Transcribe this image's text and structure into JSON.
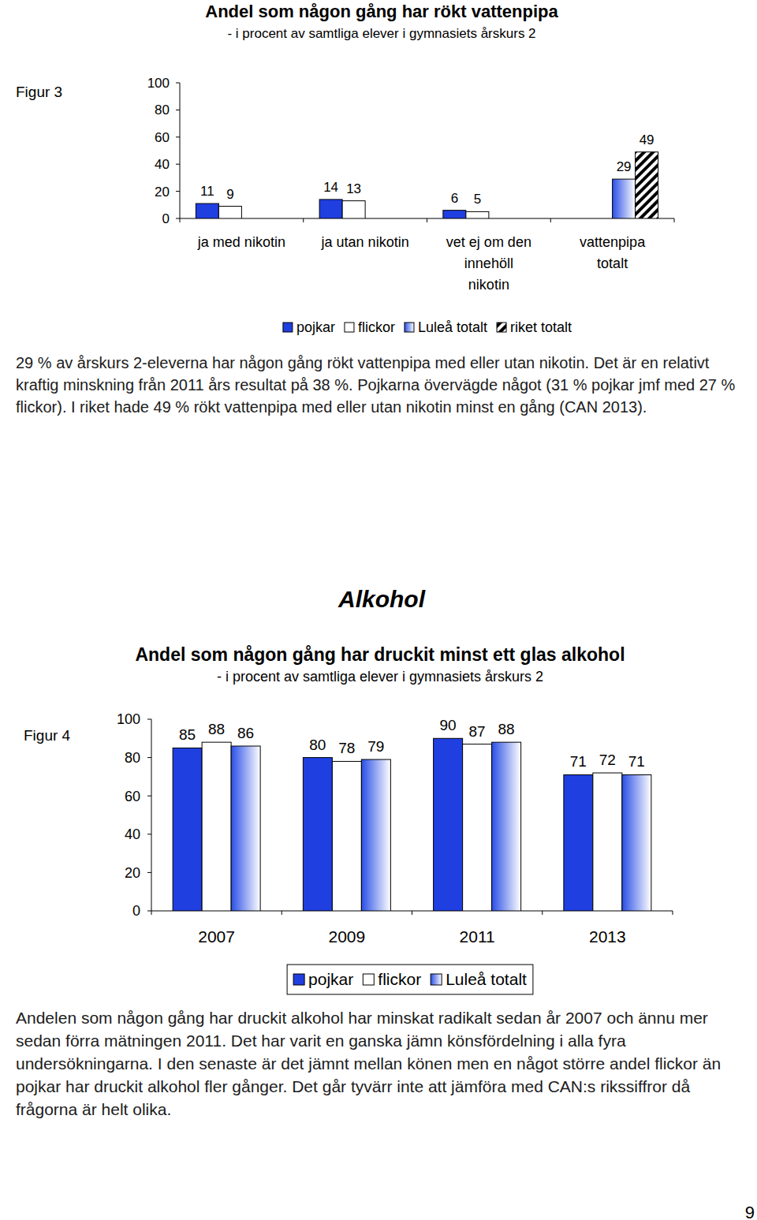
{
  "chart_data": [
    {
      "type": "bar",
      "figure_label": "Figur 3",
      "title": "Andel som någon gång har rökt vattenpipa",
      "subtitle": "- i procent av samtliga elever i gymnasiets årskurs 2",
      "categories": [
        "ja med nikotin",
        "ja utan nikotin",
        "vet ej om den\ninnehöll\nnikotin",
        "vattenpipa\ntotalt"
      ],
      "series": [
        {
          "name": "pojkar",
          "color": "#1f3fe0",
          "values": [
            11,
            14,
            6,
            null
          ]
        },
        {
          "name": "flickor",
          "color": "#ffffff",
          "values": [
            9,
            13,
            5,
            null
          ]
        },
        {
          "name": "Luleå totalt",
          "color": "#2a4fe6",
          "values": [
            null,
            null,
            null,
            29
          ]
        },
        {
          "name": "riket totalt",
          "color": "#000000",
          "values": [
            null,
            null,
            null,
            49
          ]
        }
      ],
      "ylim": [
        0,
        100
      ],
      "yticks": [
        0,
        20,
        40,
        60,
        80,
        100
      ],
      "data_labels": true,
      "legend": "bottom",
      "grid": false
    },
    {
      "type": "bar",
      "figure_label": "Figur 4",
      "title": "Andel som någon gång har druckit minst ett glas alkohol",
      "subtitle": "- i procent av samtliga elever i gymnasiets årskurs 2",
      "categories": [
        "2007",
        "2009",
        "2011",
        "2013"
      ],
      "series": [
        {
          "name": "pojkar",
          "color": "#1f3fe0",
          "values": [
            85,
            80,
            90,
            71
          ]
        },
        {
          "name": "flickor",
          "color": "#ffffff",
          "values": [
            88,
            78,
            87,
            72
          ]
        },
        {
          "name": "Luleå totalt",
          "color": "#2a4fe6",
          "values": [
            86,
            79,
            88,
            71
          ]
        }
      ],
      "ylim": [
        0,
        100
      ],
      "yticks": [
        0,
        20,
        40,
        60,
        80,
        100
      ],
      "data_labels": true,
      "legend": "bottom",
      "grid": false
    }
  ],
  "section_heading": "Alkohol",
  "paragraphs": [
    "29 % av årskurs 2-eleverna har någon gång rökt vattenpipa med eller utan nikotin. Det är en relativt kraftig minskning från 2011 års resultat på 38 %. Pojkarna övervägde något (31 % pojkar jmf med 27 % flickor). I riket hade 49 % rökt vattenpipa med eller utan nikotin minst en gång (CAN 2013).",
    "Andelen som någon gång har druckit alkohol har minskat radikalt sedan år 2007 och ännu mer sedan förra mätningen 2011. Det har varit en ganska jämn könsfördelning i alla fyra undersökningarna. I den senaste är det jämnt mellan könen men en något större andel flickor än pojkar har druckit alkohol fler gånger. Det går tyvärr inte att jämföra med CAN:s rikssiffror då frågorna är helt olika."
  ],
  "page_number": "9"
}
